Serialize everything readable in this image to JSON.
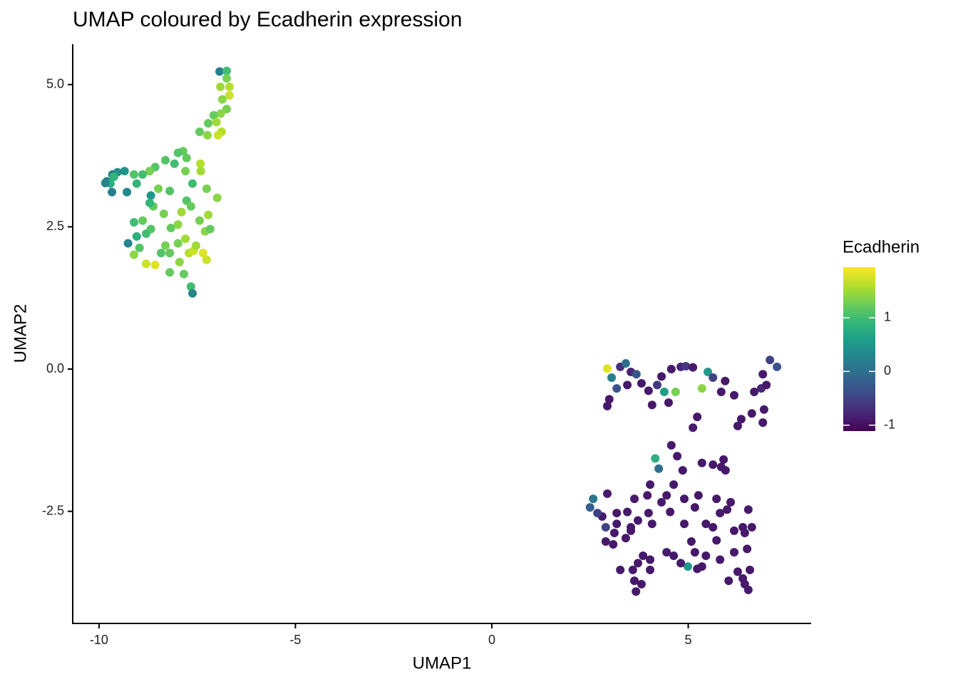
{
  "chart_data": {
    "type": "scatter",
    "title": "UMAP coloured by Ecadherin expression",
    "x_label": "UMAP1",
    "y_label": "UMAP2",
    "color_label": "Ecadherin",
    "xlim": [
      -10.67,
      8.13
    ],
    "ylim": [
      -4.47,
      5.71
    ],
    "xticks": [
      -10,
      -5,
      0,
      5
    ],
    "yticks": [
      {
        "value": 5,
        "label": "5.0"
      },
      {
        "value": 2.5,
        "label": "2.5"
      },
      {
        "value": 0,
        "label": "0.0"
      },
      {
        "value": -2.5,
        "label": "-2.5"
      }
    ],
    "color_lim": [
      -1.11,
      1.94
    ],
    "color_ticks": [
      -1,
      0,
      1
    ],
    "colorscale": [
      "#440154",
      "#482878",
      "#3e4989",
      "#31688e",
      "#26828e",
      "#1f9e89",
      "#35b779",
      "#6ece58",
      "#b5de2b",
      "#fde725"
    ],
    "x": [
      -6.93,
      -6.75,
      -6.75,
      -6.68,
      -6.91,
      -6.68,
      -6.86,
      -6.75,
      -6.9,
      -7.08,
      -7.01,
      -6.88,
      -7.22,
      -7.24,
      -7.44,
      -6.97,
      -7.86,
      -7.99,
      -8.31,
      -8.08,
      -7.77,
      -7.42,
      -7.41,
      -7.8,
      -8.57,
      -8.71,
      -8.89,
      -9.11,
      -9.35,
      -9.53,
      -9.66,
      -9.8,
      -9.71,
      -9.62,
      -9.84,
      -9.29,
      -9.67,
      -9.04,
      -8.49,
      -8.2,
      -7.62,
      -7.26,
      -6.99,
      -8.68,
      -8.62,
      -8.71,
      -7.77,
      -7.66,
      -7.9,
      -8.35,
      -8.89,
      -9.11,
      -7.22,
      -7.44,
      -7.99,
      -8.17,
      -8.68,
      -8.8,
      -9.04,
      -9.26,
      -8.97,
      -9.11,
      -8.8,
      -8.57,
      -8.2,
      -7.99,
      -7.8,
      -7.71,
      -7.59,
      -7.35,
      -7.26,
      -7.3,
      -7.17,
      -7.53,
      -7.95,
      -8.2,
      -7.84,
      -7.66,
      -7.62,
      -8.42,
      -8.31,
      2.94,
      3.05,
      3.27,
      3.41,
      3.54,
      3.68,
      3.81,
      3.99,
      4.08,
      4.21,
      4.32,
      4.57,
      4.68,
      4.81,
      4.94,
      5.12,
      5.35,
      5.5,
      5.63,
      5.84,
      6.17,
      6.68,
      6.86,
      6.99,
      7.08,
      7.26,
      6.9,
      6.62,
      6.35,
      6.26,
      6.9,
      2.99,
      2.94,
      4.5,
      4.39,
      5.23,
      5.12,
      3.18,
      3.45,
      5.94,
      6.93,
      4.16,
      4.25,
      4.57,
      4.72,
      4.86,
      4.63,
      4.45,
      4.03,
      3.96,
      3.63,
      3.45,
      3.18,
      2.94,
      2.81,
      2.58,
      2.5,
      2.69,
      2.9,
      3.09,
      3.12,
      3.54,
      3.72,
      4.08,
      3.99,
      4.32,
      4.54,
      4.9,
      5.17,
      5.26,
      5.35,
      5.63,
      5.84,
      5.9,
      5.95,
      5.72,
      5.81,
      5.63,
      5.45,
      5.72,
      5.99,
      6.08,
      6.17,
      6.39,
      6.53,
      6.44,
      6.5,
      6.17,
      5.81,
      5.45,
      5.35,
      4.99,
      5.23,
      4.81,
      4.63,
      4.45,
      4.03,
      3.85,
      3.72,
      3.59,
      3.63,
      3.67,
      3.81,
      4.03,
      4.9,
      5.08,
      5.17,
      6.57,
      6.26,
      6.03,
      6.44,
      6.53,
      6.39,
      6.62,
      3.18,
      2.9,
      3.41,
      3.27,
      3.54
    ],
    "y": [
      5.23,
      5.24,
      5.11,
      4.96,
      4.96,
      4.81,
      4.74,
      4.57,
      4.49,
      4.46,
      4.34,
      4.17,
      4.32,
      4.11,
      4.17,
      4.11,
      3.83,
      3.8,
      3.67,
      3.61,
      3.71,
      3.61,
      3.48,
      3.48,
      3.55,
      3.48,
      3.42,
      3.42,
      3.48,
      3.46,
      3.42,
      3.3,
      3.26,
      3.38,
      3.27,
      3.11,
      3.11,
      3.26,
      3.17,
      3.13,
      3.26,
      3.17,
      3.01,
      3.05,
      2.86,
      2.92,
      2.96,
      2.86,
      2.76,
      2.73,
      2.61,
      2.58,
      2.71,
      2.61,
      2.54,
      2.48,
      2.46,
      2.38,
      2.33,
      2.21,
      2.13,
      2.01,
      1.85,
      1.83,
      2.04,
      2.21,
      2.29,
      2.04,
      2.08,
      2.04,
      1.92,
      2.42,
      2.46,
      2.17,
      1.88,
      1.7,
      1.67,
      1.45,
      1.33,
      2.04,
      2.17,
      0.01,
      -0.15,
      0.04,
      0.1,
      -0.05,
      -0.09,
      -0.25,
      -0.38,
      -0.63,
      -0.28,
      -0.13,
      0.0,
      -0.4,
      0.04,
      0.05,
      0.03,
      -0.34,
      -0.05,
      -0.15,
      -0.4,
      -0.46,
      -0.4,
      -0.34,
      -0.28,
      0.16,
      0.04,
      -0.09,
      -0.78,
      -0.88,
      -1.0,
      -0.94,
      -0.53,
      -0.65,
      -0.59,
      -0.4,
      -0.84,
      -1.03,
      -0.34,
      -0.28,
      -0.21,
      -0.71,
      -1.57,
      -1.75,
      -1.34,
      -1.53,
      -1.78,
      -2.03,
      -2.22,
      -2.03,
      -2.22,
      -2.28,
      -2.51,
      -2.53,
      -2.19,
      -2.59,
      -2.28,
      -2.43,
      -2.53,
      -2.78,
      -3.08,
      -2.88,
      -2.78,
      -2.66,
      -2.72,
      -2.53,
      -2.34,
      -2.51,
      -2.28,
      -2.43,
      -2.22,
      -1.65,
      -1.68,
      -1.72,
      -1.59,
      -1.78,
      -2.28,
      -2.53,
      -2.78,
      -2.72,
      -3.01,
      -2.47,
      -2.34,
      -2.84,
      -2.78,
      -2.47,
      -2.88,
      -3.16,
      -3.22,
      -3.35,
      -3.28,
      -3.47,
      -3.47,
      -3.51,
      -3.41,
      -3.28,
      -3.22,
      -3.35,
      -3.28,
      -3.41,
      -3.53,
      -3.72,
      -3.91,
      -3.78,
      -3.53,
      -2.72,
      -3.03,
      -3.22,
      -3.53,
      -3.56,
      -3.72,
      -3.78,
      -3.88,
      -3.68,
      -2.78,
      -2.72,
      -3.03,
      -2.97,
      -3.53,
      -2.84
    ],
    "values": [
      0.2,
      1.0,
      1.3,
      1.6,
      1.5,
      1.7,
      1.4,
      1.3,
      1.4,
      1.2,
      1.5,
      1.6,
      1.2,
      1.4,
      1.2,
      1.7,
      1.2,
      1.1,
      1.1,
      1.0,
      1.2,
      1.6,
      1.5,
      1.3,
      1.1,
      1.3,
      1.0,
      1.1,
      0.5,
      0.4,
      0.3,
      0.2,
      0.8,
      0.9,
      0.3,
      0.3,
      0.2,
      0.9,
      1.3,
      1.1,
      1.0,
      1.3,
      1.4,
      0.5,
      1.2,
      0.9,
      1.1,
      1.2,
      1.5,
      1.3,
      1.2,
      1.0,
      1.5,
      1.3,
      1.4,
      1.2,
      1.1,
      1.0,
      0.8,
      0.3,
      1.1,
      1.4,
      1.7,
      1.8,
      1.2,
      1.3,
      1.5,
      1.6,
      1.7,
      1.8,
      1.7,
      1.4,
      1.2,
      1.5,
      1.4,
      1.2,
      1.2,
      1.0,
      0.3,
      1.1,
      1.3,
      1.8,
      0.2,
      -0.7,
      0.0,
      -0.8,
      -0.3,
      -0.9,
      -0.9,
      -0.9,
      -0.6,
      -0.9,
      -0.9,
      1.3,
      -0.8,
      -0.6,
      -0.9,
      1.4,
      0.5,
      -0.5,
      -0.9,
      -0.9,
      -0.9,
      -0.8,
      -0.9,
      -0.5,
      -0.3,
      -0.9,
      -0.9,
      -0.9,
      -0.9,
      -0.9,
      -0.9,
      -0.9,
      -0.9,
      0.6,
      -0.9,
      -0.9,
      -0.3,
      -0.9,
      -0.9,
      -0.9,
      0.8,
      0.0,
      -0.9,
      -0.9,
      -0.9,
      -0.9,
      -0.9,
      -0.9,
      -0.9,
      -0.9,
      -0.9,
      -0.9,
      -0.9,
      -0.9,
      0.1,
      -0.2,
      -0.5,
      -0.5,
      -0.9,
      -0.9,
      -0.9,
      -0.9,
      -0.9,
      -0.9,
      -0.9,
      -0.9,
      -0.9,
      -0.9,
      -0.9,
      -0.9,
      -0.9,
      -0.9,
      -0.9,
      -0.9,
      -0.9,
      -0.9,
      -0.9,
      -0.9,
      -0.9,
      -0.9,
      -0.9,
      -0.9,
      -0.9,
      -0.9,
      -0.9,
      -0.9,
      -0.9,
      -0.9,
      -0.9,
      -0.9,
      0.5,
      -0.9,
      -0.9,
      -0.9,
      -0.9,
      -0.9,
      -0.9,
      -0.9,
      -0.9,
      -0.9,
      -0.9,
      -0.9,
      -0.9,
      -0.9,
      -0.9,
      -0.9,
      -0.9,
      -0.9,
      -0.9,
      -0.9,
      -0.9,
      -0.9,
      -0.9,
      -0.9,
      -0.9,
      -0.9,
      -0.9,
      -0.9
    ]
  }
}
